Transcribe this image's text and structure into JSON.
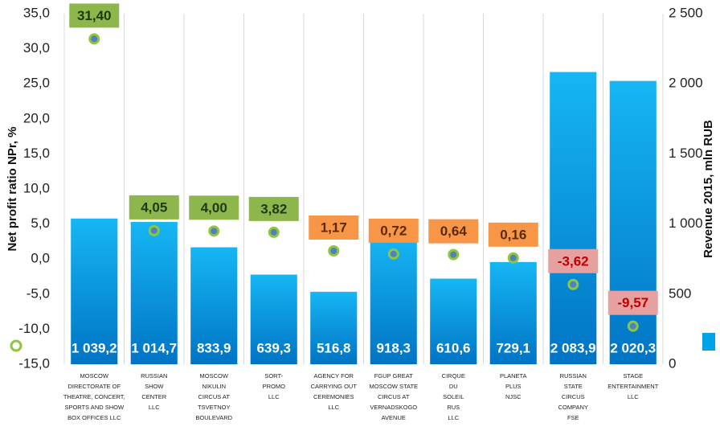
{
  "chart_data": {
    "type": "bar-scatter",
    "y_title": "Net profit ratio NPr, %",
    "y2_title": "Revenue 2015, mln RUB",
    "categories": [
      [
        "MOSCOW",
        "DIRECTORATE OF",
        "THEATRE, CONCERT,",
        "SPORTS AND SHOW",
        "BOX OFFICES  LLC"
      ],
      [
        "RUSSIAN",
        "SHOW",
        "CENTER",
        "LLC"
      ],
      [
        "MOSCOW",
        "NIKULIN",
        "CIRCUS AT",
        "TSVETNOY",
        "BOULEVARD"
      ],
      [
        "SORT-",
        "PROMO",
        "LLC"
      ],
      [
        "AGENCY FOR",
        "CARRYING OUT",
        "CEREMONIES",
        "LLC"
      ],
      [
        "FGUP  GREAT",
        "MOSCOW  STATE",
        "CIRCUS AT",
        "VERNADSKOGO",
        "AVENUE"
      ],
      [
        "CIRQUE",
        "DU",
        "SOLEIL",
        "RUS",
        "LLC"
      ],
      [
        "PLANETA",
        "PLUS",
        "NJSC"
      ],
      [
        "RUSSIAN",
        "STATE",
        "CIRCUS",
        "COMPANY",
        "FSE"
      ],
      [
        "STAGE",
        "ENTERTAINMENT",
        "LLC"
      ]
    ],
    "ylim": [
      -15,
      35
    ],
    "yticks": [
      {
        "value": -15,
        "label": "-15,0"
      },
      {
        "value": -10,
        "label": "-10,0"
      },
      {
        "value": -5,
        "label": "-5,0"
      },
      {
        "value": 0,
        "label": "0,0"
      },
      {
        "value": 5,
        "label": "5,0"
      },
      {
        "value": 10,
        "label": "10,0"
      },
      {
        "value": 15,
        "label": "15,0"
      },
      {
        "value": 20,
        "label": "20,0"
      },
      {
        "value": 25,
        "label": "25,0"
      },
      {
        "value": 30,
        "label": "30,0"
      },
      {
        "value": 35,
        "label": "35,0"
      }
    ],
    "y2lim": [
      0,
      2500
    ],
    "y2ticks": [
      0,
      500,
      {
        "value": 1000,
        "label": "1 000"
      },
      {
        "value": 1500,
        "label": "1 500"
      },
      {
        "value": 2000,
        "label": "2 000"
      },
      {
        "value": 2500,
        "label": "2 500"
      }
    ],
    "series": [
      {
        "type": "bar",
        "axis": "y2",
        "color": "#00a2e8",
        "values": [
          1039.2,
          1014.7,
          833.9,
          639.3,
          516.8,
          918.3,
          610.6,
          729.1,
          2083.9,
          2020.3
        ],
        "value_labels": [
          "1 039,2",
          "1 014,7",
          "833,9",
          "639,3",
          "516,8",
          "918,3",
          "610,6",
          "729,1",
          "2 083,9",
          "2 020,3"
        ]
      },
      {
        "type": "scatter",
        "axis": "y",
        "color": "#8dc63f",
        "values": [
          31.4,
          4.05,
          4.0,
          3.82,
          1.17,
          0.72,
          0.64,
          0.16,
          -3.62,
          -9.57
        ],
        "value_labels": [
          "31,40",
          "4,05",
          "4,00",
          "3,82",
          "1,17",
          "0,72",
          "0,64",
          "0,16",
          "-3,62",
          "-9,57"
        ],
        "label_fills": [
          "#8db64c",
          "#8db64c",
          "#8db64c",
          "#8db64c",
          "#f79646",
          "#f79646",
          "#f79646",
          "#f79646",
          "#e6a0a0",
          "#e6a0a0"
        ],
        "label_colors": [
          "#1e3a10",
          "#1e3a10",
          "#1e3a10",
          "#1e3a10",
          "#5a2a00",
          "#5a2a00",
          "#5a2a00",
          "#5a2a00",
          "#c00000",
          "#c00000"
        ]
      }
    ]
  }
}
